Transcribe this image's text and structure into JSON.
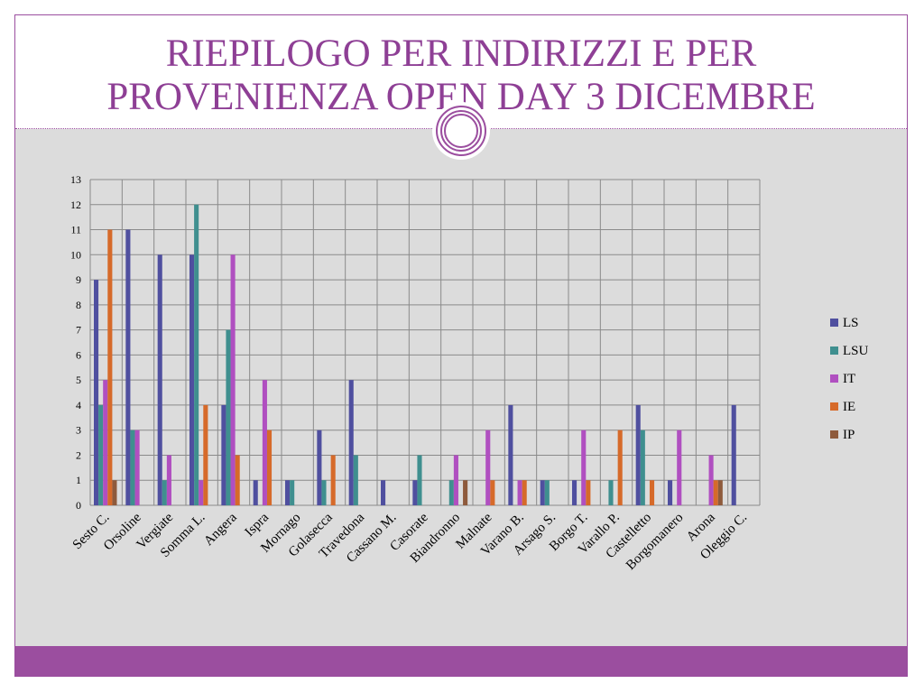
{
  "slide": {
    "title_line1": "RIEPILOGO PER INDIRIZZI E PER",
    "title_line2": "PROVENIENZA OPEN DAY 3 DICEMBRE"
  },
  "colors": {
    "accent": "#9b4e9f",
    "title": "#8e3f95",
    "panel": "#dcdcdc",
    "LS": "#4f4f9f",
    "LSU": "#3f8f8f",
    "IT": "#b04fc0",
    "IE": "#d66a2a",
    "IP": "#8e5a3c"
  },
  "chart_data": {
    "type": "bar",
    "title": "",
    "xlabel": "",
    "ylabel": "",
    "ylim": [
      0,
      13
    ],
    "yticks": [
      0,
      1,
      2,
      3,
      4,
      5,
      6,
      7,
      8,
      9,
      10,
      11,
      12,
      13
    ],
    "grid": true,
    "legend_position": "right",
    "categories": [
      "Sesto C.",
      "Orsoline",
      "Vergiate",
      "Somma L.",
      "Angera",
      "Ispra",
      "Mornago",
      "Golasecca",
      "Travedona",
      "Cassano M.",
      "Casorate",
      "Biandronno",
      "Malnate",
      "Varano B.",
      "Arsago S.",
      "Borgo T.",
      "Varallo P.",
      "Castelletto",
      "Borgomanero",
      "Arona",
      "Oleggio C."
    ],
    "series": [
      {
        "name": "LS",
        "values": [
          9,
          11,
          10,
          10,
          4,
          1,
          1,
          3,
          5,
          1,
          1,
          0,
          0,
          4,
          1,
          1,
          0,
          4,
          1,
          0,
          4
        ]
      },
      {
        "name": "LSU",
        "values": [
          4,
          3,
          1,
          12,
          7,
          0,
          1,
          1,
          2,
          0,
          2,
          1,
          0,
          0,
          1,
          0,
          1,
          3,
          0,
          0,
          0
        ]
      },
      {
        "name": "IT",
        "values": [
          5,
          3,
          2,
          1,
          10,
          5,
          0,
          0,
          0,
          0,
          0,
          2,
          3,
          1,
          0,
          3,
          0,
          0,
          3,
          2,
          0
        ]
      },
      {
        "name": "IE",
        "values": [
          11,
          0,
          0,
          4,
          2,
          3,
          0,
          2,
          0,
          0,
          0,
          0,
          1,
          1,
          0,
          1,
          3,
          1,
          0,
          1,
          0
        ]
      },
      {
        "name": "IP",
        "values": [
          1,
          0,
          0,
          0,
          0,
          0,
          0,
          0,
          0,
          0,
          0,
          1,
          0,
          0,
          0,
          0,
          0,
          0,
          0,
          1,
          0
        ]
      }
    ]
  }
}
